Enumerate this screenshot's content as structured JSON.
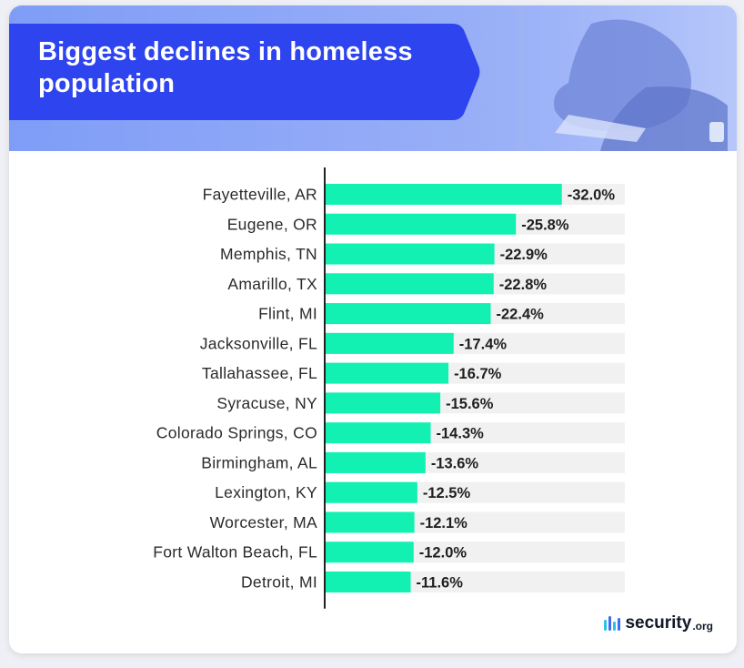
{
  "colors": {
    "bar": "#12f0b2",
    "track": "#f1f1f1",
    "banner": "#2e44ee",
    "axis": "#222222",
    "label": "#2b2b2b",
    "value": "#1f1f1f",
    "logo_bars": [
      "#27c3e8",
      "#3c6cf0",
      "#27c3e8",
      "#3c6cf0"
    ]
  },
  "brand": {
    "name": "security",
    "tld": ".org",
    "icon": "security-logo-icon"
  },
  "chart_data": {
    "type": "bar",
    "orientation": "horizontal",
    "title": "Biggest declines in homeless population",
    "xlabel": "",
    "ylabel": "",
    "xlim": [
      0,
      40.5
    ],
    "value_format": "percent, one decimal",
    "categories": [
      "Fayetteville, AR",
      "Eugene, OR",
      "Memphis, TN",
      "Amarillo, TX",
      "Flint, MI",
      "Jacksonville, FL",
      "Tallahassee, FL",
      "Syracuse, NY",
      "Colorado Springs, CO",
      "Birmingham, AL",
      "Lexington, KY",
      "Worcester, MA",
      "Fort Walton Beach, FL",
      "Detroit, MI"
    ],
    "values": [
      -32.0,
      -25.8,
      -22.9,
      -22.8,
      -22.4,
      -17.4,
      -16.7,
      -15.6,
      -14.3,
      -13.6,
      -12.5,
      -12.1,
      -12.0,
      -11.6
    ],
    "value_labels": [
      "-32.0%",
      "-25.8%",
      "-22.9%",
      "-22.8%",
      "-22.4%",
      "-17.4%",
      "-16.7%",
      "-15.6%",
      "-14.3%",
      "-13.6%",
      "-12.5%",
      "-12.1%",
      "-12.0%",
      "-11.6%"
    ]
  }
}
